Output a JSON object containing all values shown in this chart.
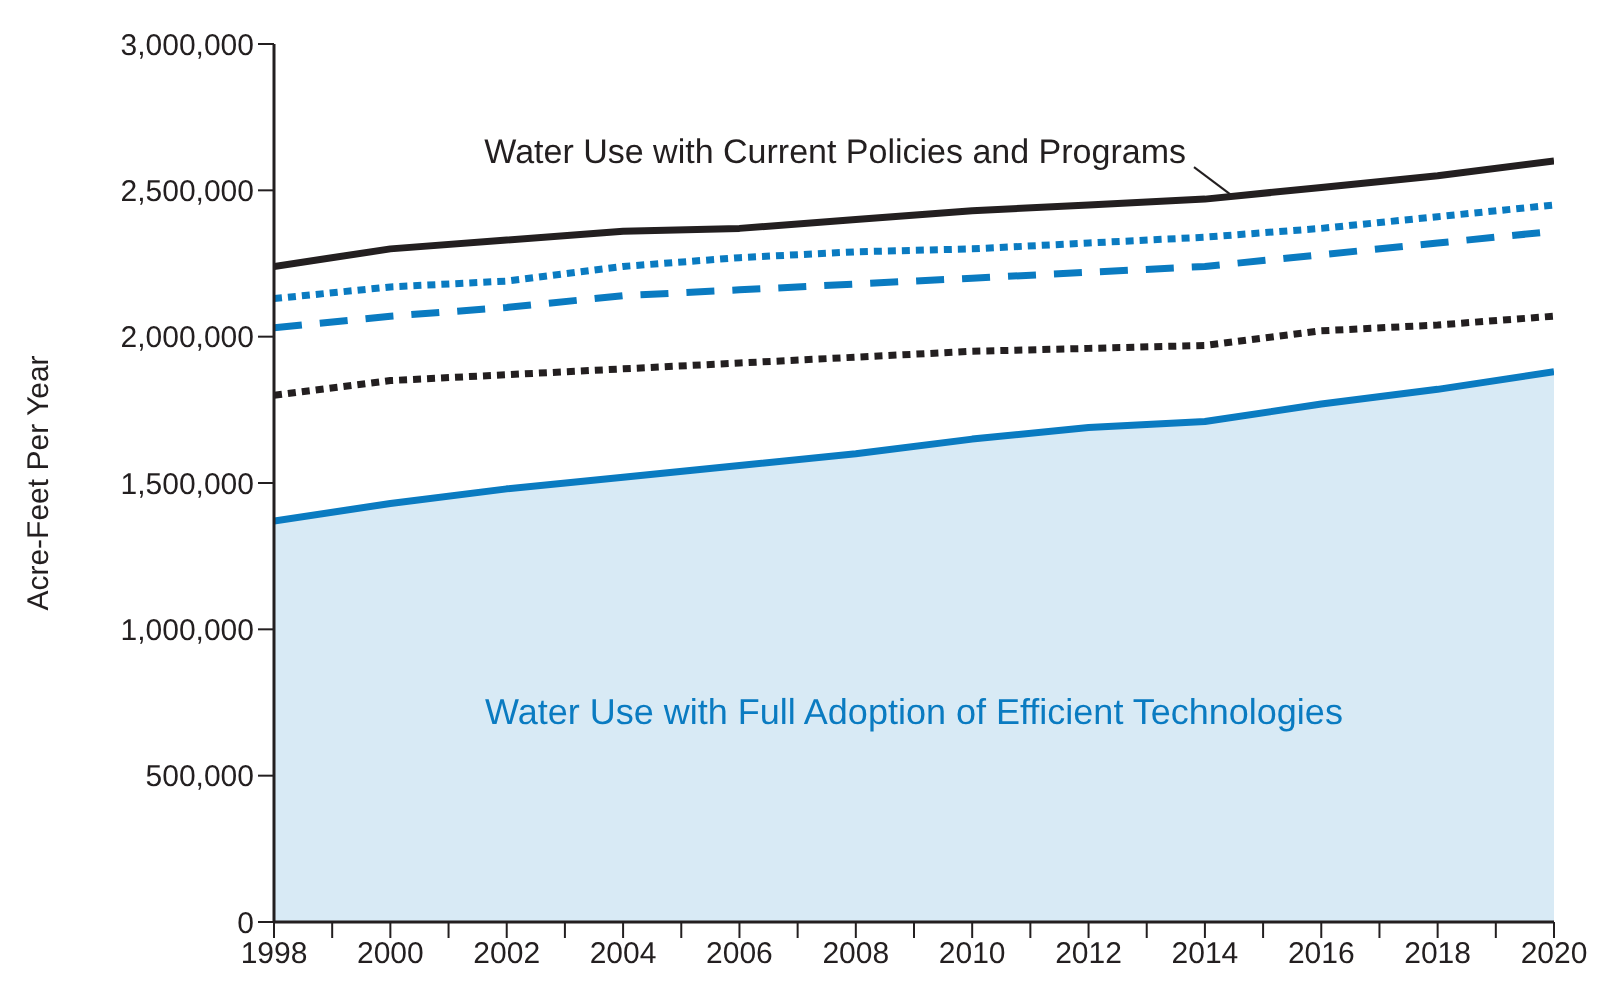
{
  "chart_data": {
    "type": "line",
    "ylabel": "Acre-Feet Per Year",
    "x": [
      1998,
      2000,
      2002,
      2004,
      2006,
      2008,
      2010,
      2012,
      2014,
      2016,
      2018,
      2020
    ],
    "series": [
      {
        "type": "area",
        "color": "#0a7bc1",
        "line_style": "solid",
        "values": [
          1370000,
          1430000,
          1480000,
          1520000,
          1560000,
          1600000,
          1650000,
          1690000,
          1710000,
          1770000,
          1820000,
          1880000
        ]
      },
      {
        "color": "#231f20",
        "line_style": "solid",
        "values": [
          2240000,
          2300000,
          2330000,
          2360000,
          2370000,
          2400000,
          2430000,
          2450000,
          2470000,
          2510000,
          2550000,
          2600000
        ]
      },
      {
        "color": "#0a7bc1",
        "line_style": "dotted",
        "values": [
          2130000,
          2170000,
          2190000,
          2240000,
          2270000,
          2290000,
          2300000,
          2320000,
          2340000,
          2370000,
          2410000,
          2450000
        ]
      },
      {
        "color": "#0a7bc1",
        "line_style": "dashed",
        "values": [
          2030000,
          2070000,
          2100000,
          2140000,
          2160000,
          2180000,
          2200000,
          2220000,
          2240000,
          2280000,
          2320000,
          2360000
        ]
      },
      {
        "color": "#231f20",
        "line_style": "dotted",
        "values": [
          1800000,
          1850000,
          1870000,
          1890000,
          1910000,
          1930000,
          1950000,
          1960000,
          1970000,
          2020000,
          2040000,
          2070000
        ]
      }
    ],
    "xlim": [
      1998,
      2020
    ],
    "xticks": [
      1998,
      {
        "value": 1999,
        "label": null
      },
      2000,
      {
        "value": 2001,
        "label": null
      },
      2002,
      {
        "value": 2003,
        "label": null
      },
      2004,
      {
        "value": 2005,
        "label": null
      },
      2006,
      {
        "value": 2007,
        "label": null
      },
      2008,
      {
        "value": 2009,
        "label": null
      },
      2010,
      {
        "value": 2011,
        "label": null
      },
      2012,
      {
        "value": 2013,
        "label": null
      },
      2014,
      {
        "value": 2015,
        "label": null
      },
      2016,
      {
        "value": 2017,
        "label": null
      },
      2018,
      {
        "value": 2019,
        "label": null
      },
      2020
    ],
    "ylim": [
      0,
      3000000
    ],
    "yticks": [
      0,
      {
        "value": 500000,
        "label": "500,000"
      },
      {
        "value": 1000000,
        "label": "1,000,000"
      },
      {
        "value": 1500000,
        "label": "1,500,000"
      },
      {
        "value": 2000000,
        "label": "2,000,000"
      },
      {
        "value": 2500000,
        "label": "2,500,000"
      },
      {
        "value": 3000000,
        "label": "3,000,000"
      }
    ],
    "grid": false,
    "legend": false,
    "marker": "none",
    "annotations": [
      {
        "text": "Water Use with Current Policies and Programs",
        "x": 2014.5,
        "y": 2470000
      },
      "Water Use with Full Adoption of Efficient Technologies"
    ]
  }
}
